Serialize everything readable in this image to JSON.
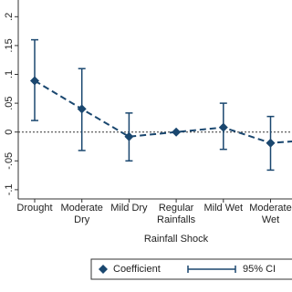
{
  "chart_data": {
    "type": "line",
    "x_label": "Rainfall Shock",
    "categories": [
      "Drought",
      "Moderate Dry",
      "Mild Dry",
      "Regular Rainfalls",
      "Mild Wet",
      "Moderate Wet",
      null
    ],
    "series": [
      {
        "name": "Coefficient",
        "color": "#1a476f",
        "values": [
          0.089,
          0.04,
          -0.008,
          0,
          0.008,
          -0.019,
          -0.013
        ],
        "ci_low": [
          0.02,
          -0.032,
          -0.05,
          null,
          -0.03,
          -0.066,
          null
        ],
        "ci_high": [
          0.16,
          0.11,
          0.033,
          null,
          0.05,
          0.027,
          null
        ]
      }
    ],
    "ci_legend": "95% CI",
    "ylim": [
      -0.116,
      0.229
    ],
    "yticks": [
      {
        "value": -0.1,
        "label": "-.1"
      },
      {
        "value": -0.05,
        "label": "-.05"
      },
      0,
      {
        "value": 0.05,
        "label": ".05"
      },
      {
        "value": 0.1,
        "label": ".1"
      },
      {
        "value": 0.15,
        "label": ".15"
      },
      {
        "value": 0.2,
        "label": ".2"
      }
    ],
    "reference_line": 0,
    "legend": "bottom"
  }
}
